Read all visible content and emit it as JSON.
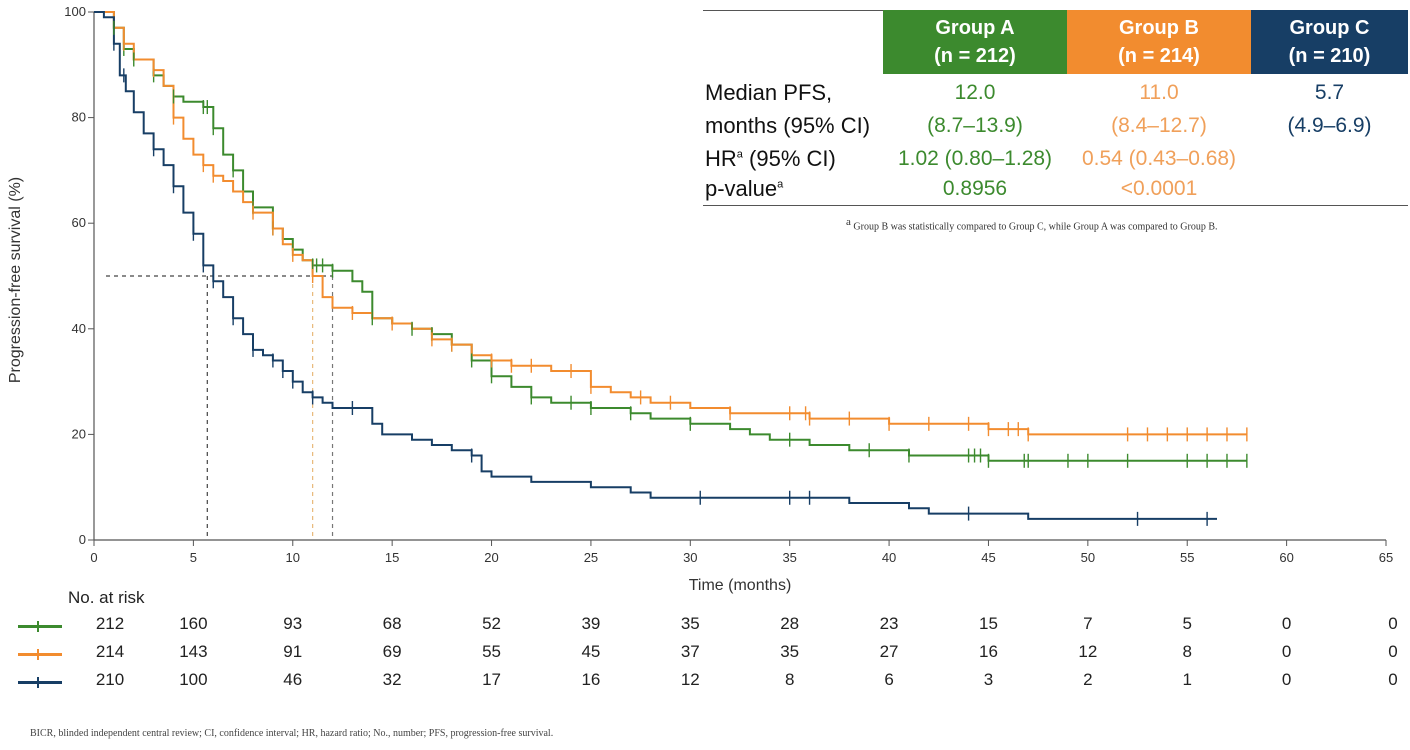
{
  "chart_data": {
    "type": "line",
    "subtype": "kaplan-meier",
    "xlabel": "Time (months)",
    "ylabel": "Progression-free survival (%)",
    "xlim": [
      0,
      65
    ],
    "ylim": [
      0,
      100
    ],
    "x_ticks": [
      0,
      5,
      10,
      15,
      20,
      25,
      30,
      35,
      40,
      45,
      50,
      55,
      60,
      65
    ],
    "y_ticks": [
      0,
      20,
      40,
      60,
      80,
      100
    ],
    "median_reference": {
      "y": 50,
      "x_values": [
        5.7,
        11.0,
        12.0
      ]
    },
    "series": [
      {
        "name": "Group A",
        "color": "#3c8a2e",
        "points": [
          [
            0,
            100
          ],
          [
            0.5,
            100
          ],
          [
            1,
            97
          ],
          [
            1.5,
            93
          ],
          [
            2,
            91
          ],
          [
            3,
            88
          ],
          [
            3.5,
            86
          ],
          [
            4,
            84
          ],
          [
            4.5,
            83
          ],
          [
            5.5,
            82
          ],
          [
            6,
            78
          ],
          [
            6.5,
            73
          ],
          [
            7,
            70
          ],
          [
            7.5,
            66
          ],
          [
            8,
            63
          ],
          [
            9,
            59
          ],
          [
            9.5,
            57
          ],
          [
            10,
            55
          ],
          [
            10.5,
            53
          ],
          [
            11,
            52
          ],
          [
            12,
            51
          ],
          [
            13,
            49
          ],
          [
            13.5,
            47
          ],
          [
            14,
            42
          ],
          [
            15,
            41
          ],
          [
            16,
            40
          ],
          [
            17,
            39
          ],
          [
            18,
            37
          ],
          [
            19,
            34
          ],
          [
            20,
            31
          ],
          [
            21,
            29
          ],
          [
            22,
            27
          ],
          [
            23,
            26
          ],
          [
            25,
            25
          ],
          [
            27,
            24
          ],
          [
            28,
            23
          ],
          [
            30,
            22
          ],
          [
            32,
            21
          ],
          [
            33,
            20
          ],
          [
            34,
            19
          ],
          [
            35,
            19
          ],
          [
            36,
            18
          ],
          [
            38,
            17
          ],
          [
            40,
            17
          ],
          [
            41,
            16
          ],
          [
            44,
            16
          ],
          [
            45,
            15
          ],
          [
            47,
            15
          ],
          [
            58,
            15
          ]
        ],
        "censor_x": [
          1,
          1.5,
          2,
          3,
          4,
          5.5,
          5.7,
          6,
          7,
          8,
          9,
          10,
          11,
          11.2,
          11.5,
          12,
          14,
          16,
          17,
          18,
          19,
          20,
          22,
          24,
          25,
          27,
          30,
          35,
          39,
          41,
          44,
          44.3,
          44.6,
          45,
          46.8,
          47,
          49,
          50,
          52,
          55,
          56,
          57,
          58
        ]
      },
      {
        "name": "Group B",
        "color": "#f28c2f",
        "points": [
          [
            0,
            100
          ],
          [
            0.5,
            100
          ],
          [
            1,
            97
          ],
          [
            1.5,
            94
          ],
          [
            2,
            91
          ],
          [
            3,
            89
          ],
          [
            3.5,
            86
          ],
          [
            4,
            80
          ],
          [
            4.5,
            76
          ],
          [
            5,
            73
          ],
          [
            5.5,
            71
          ],
          [
            6,
            69
          ],
          [
            6.5,
            68
          ],
          [
            7,
            66
          ],
          [
            7.5,
            64
          ],
          [
            8,
            62
          ],
          [
            9,
            59
          ],
          [
            9.5,
            56
          ],
          [
            10,
            54
          ],
          [
            10.5,
            53
          ],
          [
            11,
            50
          ],
          [
            11.5,
            46
          ],
          [
            12,
            44
          ],
          [
            13,
            43
          ],
          [
            14,
            42
          ],
          [
            15,
            41
          ],
          [
            16,
            40
          ],
          [
            17,
            38
          ],
          [
            18,
            37
          ],
          [
            19,
            35
          ],
          [
            20,
            34
          ],
          [
            21,
            33
          ],
          [
            23,
            32
          ],
          [
            25,
            29
          ],
          [
            26,
            28
          ],
          [
            27,
            27
          ],
          [
            28,
            26
          ],
          [
            30,
            25
          ],
          [
            32,
            24
          ],
          [
            35,
            24
          ],
          [
            36,
            23
          ],
          [
            38,
            23
          ],
          [
            40,
            22
          ],
          [
            44,
            22
          ],
          [
            45,
            21
          ],
          [
            47,
            20
          ],
          [
            58,
            20
          ]
        ],
        "censor_x": [
          1.5,
          3,
          4,
          5.5,
          6,
          8,
          9,
          10,
          11,
          13,
          15,
          17,
          18,
          20,
          21,
          22,
          24,
          25,
          27.5,
          29,
          32,
          35,
          35.8,
          36,
          38,
          40,
          42,
          44,
          45,
          46,
          46.5,
          47,
          52,
          53,
          54,
          55,
          56,
          57,
          58
        ]
      },
      {
        "name": "Group C",
        "color": "#173e65",
        "points": [
          [
            0,
            100
          ],
          [
            0.5,
            99
          ],
          [
            1,
            94
          ],
          [
            1.3,
            88
          ],
          [
            1.6,
            85
          ],
          [
            2,
            81
          ],
          [
            2.5,
            77
          ],
          [
            3,
            74
          ],
          [
            3.5,
            71
          ],
          [
            4,
            67
          ],
          [
            4.5,
            62
          ],
          [
            5,
            58
          ],
          [
            5.5,
            52
          ],
          [
            6,
            49
          ],
          [
            6.5,
            46
          ],
          [
            7,
            42
          ],
          [
            7.5,
            39
          ],
          [
            8,
            36
          ],
          [
            8.5,
            35
          ],
          [
            9,
            34
          ],
          [
            9.5,
            32
          ],
          [
            10,
            30
          ],
          [
            10.5,
            28
          ],
          [
            11,
            27
          ],
          [
            11.5,
            26
          ],
          [
            12,
            25
          ],
          [
            13,
            25
          ],
          [
            14,
            22
          ],
          [
            14.5,
            20
          ],
          [
            16,
            19
          ],
          [
            17,
            18
          ],
          [
            18,
            17
          ],
          [
            19,
            16
          ],
          [
            19.5,
            13
          ],
          [
            20,
            12
          ],
          [
            22,
            11
          ],
          [
            25,
            10
          ],
          [
            27,
            9
          ],
          [
            28,
            8
          ],
          [
            30,
            8
          ],
          [
            35,
            8
          ],
          [
            38,
            7
          ],
          [
            41,
            6
          ],
          [
            42,
            5
          ],
          [
            45,
            5
          ],
          [
            47,
            4
          ],
          [
            56.5,
            4
          ]
        ],
        "censor_x": [
          1,
          1.5,
          3,
          4,
          5,
          5.5,
          6,
          7,
          8,
          9,
          9.5,
          10,
          11,
          13,
          19,
          30.5,
          35,
          36,
          44,
          52.5,
          56
        ]
      }
    ],
    "risk_table": {
      "title": "No. at risk",
      "times": [
        0,
        5,
        10,
        15,
        20,
        25,
        30,
        35,
        40,
        45,
        50,
        55,
        60,
        65
      ],
      "rows": [
        {
          "group": "Group A",
          "values": [
            212,
            160,
            93,
            68,
            52,
            39,
            35,
            28,
            23,
            15,
            7,
            5,
            0,
            0
          ]
        },
        {
          "group": "Group B",
          "values": [
            214,
            143,
            91,
            69,
            55,
            45,
            37,
            35,
            27,
            16,
            12,
            8,
            0,
            0
          ]
        },
        {
          "group": "Group C",
          "values": [
            210,
            100,
            46,
            32,
            17,
            16,
            12,
            8,
            6,
            3,
            2,
            1,
            0,
            0
          ]
        }
      ]
    }
  },
  "summary_table": {
    "headers": {
      "a_line1": "Group A",
      "a_line2": "(n = 212)",
      "b_line1": "Group B",
      "b_line2": "(n = 214)",
      "c_line1": "Group C",
      "c_line2": "(n = 210)"
    },
    "rows": {
      "median_label_1": "Median PFS,",
      "median_label_2": "months (95% CI)",
      "hr_label": "HR",
      "hr_label_tail": " (95% CI)",
      "p_label": "p-value",
      "sup_mark": "a",
      "a_median": "12.0",
      "a_ci": "(8.7–13.9)",
      "a_hr": "1.02 (0.80–1.28)",
      "a_p": "0.8956",
      "b_median": "11.0",
      "b_ci": "(8.4–12.7)",
      "b_hr": "0.54 (0.43–0.68)",
      "b_p": "<0.0001",
      "c_median": "5.7",
      "c_ci": "(4.9–6.9)"
    },
    "footnote_mark": "a",
    "footnote": " Group B was statistically compared to Group C, while Group A was compared to Group B."
  },
  "footer": "BICR, blinded independent central review;  CI, confidence interval; HR, hazard ratio; No., number; PFS, progression-free survival."
}
